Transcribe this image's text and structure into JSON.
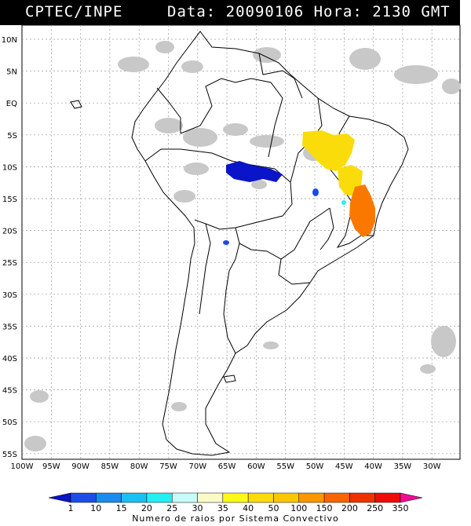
{
  "header": {
    "source": "CPTEC/INPE",
    "info": "Data: 20090106 Hora: 2130 GMT"
  },
  "map": {
    "lon_range": [
      -100,
      -25
    ],
    "lat_range": [
      -56,
      13
    ],
    "lat_labels": [
      "10N",
      "5N",
      "EQ",
      "5S",
      "10S",
      "15S",
      "20S",
      "25S",
      "30S",
      "35S",
      "40S",
      "45S",
      "50S",
      "55S"
    ],
    "lon_labels": [
      "100W",
      "95W",
      "90W",
      "85W",
      "80W",
      "75W",
      "70W",
      "65W",
      "60W",
      "55W",
      "50W",
      "45W",
      "40W",
      "35W",
      "30W"
    ],
    "grid": true
  },
  "colorbar": {
    "labels": [
      "1",
      "10",
      "15",
      "20",
      "25",
      "30",
      "35",
      "40",
      "50",
      "100",
      "150",
      "200",
      "250",
      "350"
    ],
    "colors": [
      "#0a14c8",
      "#1f4be8",
      "#1a8cf0",
      "#19c2f0",
      "#23f0f0",
      "#c8fafa",
      "#fafac8",
      "#fafa14",
      "#fadc0a",
      "#fac800",
      "#fa9600",
      "#fa6400",
      "#f03200",
      "#f00a0a",
      "#f00a96"
    ],
    "title": "Numero de raios por Sistema Convectivo"
  }
}
